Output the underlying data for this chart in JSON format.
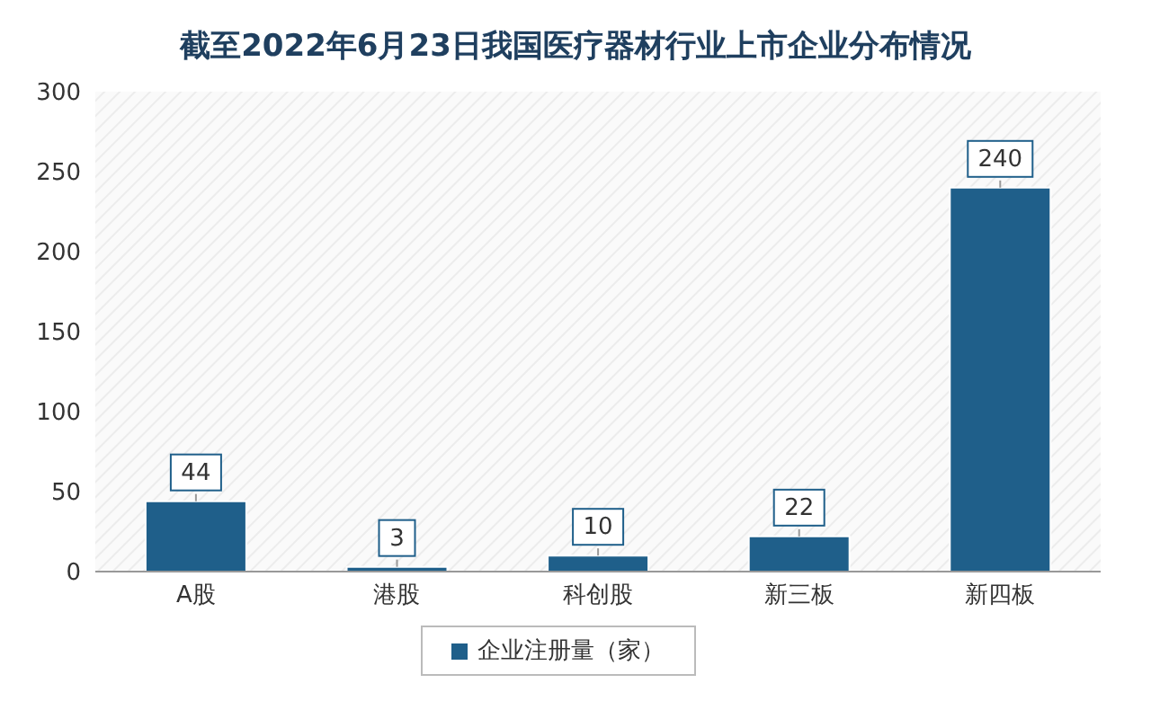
{
  "chart_data": {
    "type": "bar",
    "title": "截至2022年6月23日我国医疗器材行业上市企业分布情况",
    "categories": [
      "A股",
      "港股",
      "科创股",
      "新三板",
      "新四板"
    ],
    "series": [
      {
        "name": "企业注册量（家）",
        "color": "#1f5f8a",
        "values": [
          44,
          3,
          10,
          22,
          240
        ]
      }
    ],
    "ylim": [
      0,
      300
    ],
    "yticks": [
      0,
      50,
      100,
      150,
      200,
      250,
      300
    ],
    "data_labels": true,
    "legend": "bottom",
    "grid": false
  }
}
